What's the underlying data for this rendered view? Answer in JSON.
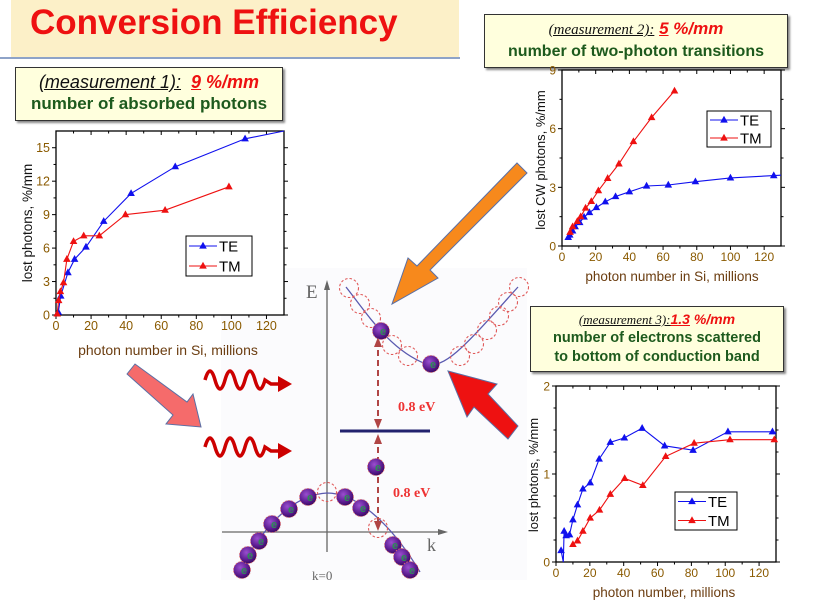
{
  "header": {
    "title": "Conversion Efficiency"
  },
  "callouts": [
    {
      "label": "(measurement 1):",
      "value": "9",
      "unit": "%/mm",
      "description": [
        "number of absorbed photons"
      ]
    },
    {
      "label": "(measurement 2):",
      "value": "5",
      "unit": "%/mm",
      "description": [
        "number of two-photon transitions"
      ]
    },
    {
      "label": "(measurement 3):",
      "value": "1.3",
      "unit": "%/mm",
      "description": [
        "number of electrons scattered",
        "to bottom of conduction band"
      ]
    }
  ],
  "band_diagram": {
    "energy_axis_label": "E",
    "momentum_axis_label": "k",
    "k0_label": "k=0",
    "gap_upper_label": "0.8 eV",
    "gap_lower_label": "0.8 eV",
    "electron_glyph": "e"
  },
  "colors": {
    "te": "#1010ee",
    "tm": "#ee1111",
    "title": "#ee1111",
    "callout_bg": "#ffffdd",
    "arrow_orange": "#f7891c",
    "arrow_red": "#ee1111",
    "arrow_pink": "#f56b6b"
  },
  "chart_data": [
    {
      "type": "line",
      "id": "chart-absorbed",
      "xlabel": "photon number in Si, millions",
      "ylabel": "lost photons,  %/mm",
      "xlim": [
        0,
        130
      ],
      "ylim": [
        0,
        16.5
      ],
      "xticks": [
        0,
        20,
        40,
        60,
        80,
        100,
        120
      ],
      "yticks": [
        0,
        3,
        6,
        9,
        12,
        15
      ],
      "legend": "center-right",
      "series": [
        {
          "name": "TE",
          "x": [
            1.3,
            2.7,
            6.8,
            10.6,
            17.1,
            27.2,
            42.8,
            68,
            107.8,
            130
          ],
          "y": [
            0.25,
            1.7,
            3.8,
            5.0,
            6.1,
            8.4,
            10.9,
            13.3,
            15.8,
            16.5
          ],
          "marker_count": 9
        },
        {
          "name": "TM",
          "x": [
            0.7,
            1.5,
            2.5,
            4.3,
            6.2,
            10,
            15.8,
            24.7,
            39.6,
            62.2,
            98.6
          ],
          "y": [
            0.1,
            1.3,
            2.1,
            2.9,
            5.0,
            6.6,
            7.1,
            7.1,
            9.0,
            9.4,
            11.5
          ]
        }
      ]
    },
    {
      "type": "line",
      "id": "chart-two-photon",
      "xlabel": "photon number in Si, millions",
      "ylabel": "lost CW photons,  %/mm",
      "xlim": [
        0,
        130
      ],
      "ylim": [
        0,
        9
      ],
      "xticks": [
        0,
        20,
        40,
        60,
        80,
        100,
        120
      ],
      "yticks": [
        0,
        3,
        6,
        9
      ],
      "legend": "top-right",
      "series": [
        {
          "name": "TE",
          "x": [
            3.7,
            4.6,
            6.3,
            7.8,
            10.5,
            13.1,
            16.3,
            20.4,
            25.7,
            31.8,
            40,
            50.2,
            63.1,
            79.2,
            100,
            125.7,
            130
          ],
          "y": [
            0.44,
            0.56,
            0.77,
            0.99,
            1.2,
            1.48,
            1.71,
            1.97,
            2.26,
            2.53,
            2.77,
            3.07,
            3.12,
            3.29,
            3.48,
            3.6,
            3.62
          ],
          "marker_count": 16
        },
        {
          "name": "TM",
          "x": [
            4.8,
            6.3,
            9.1,
            11.1,
            14,
            17.4,
            21.6,
            27.1,
            33.8,
            42.4,
            53.2,
            66.8
          ],
          "y": [
            0.7,
            0.99,
            1.26,
            1.5,
            1.94,
            2.28,
            2.83,
            3.46,
            4.2,
            5.34,
            6.57,
            7.93
          ]
        }
      ]
    },
    {
      "type": "line",
      "id": "chart-scattered",
      "xlabel": "photon number, millions",
      "ylabel": "lost photons,  %/mm",
      "xlim": [
        0,
        130
      ],
      "ylim": [
        0,
        2
      ],
      "xticks": [
        0,
        20,
        40,
        60,
        80,
        100,
        120
      ],
      "yticks": [
        0,
        1,
        2
      ],
      "legend": "center-right",
      "series": [
        {
          "name": "TE",
          "x": [
            3,
            4.3,
            4.8,
            6,
            8,
            10,
            12.7,
            15.9,
            20.2,
            25.5,
            32.1,
            40.4,
            50.9,
            64.2,
            81,
            101.6,
            127.9,
            130
          ],
          "y": [
            0.13,
            0,
            0.35,
            0.3,
            0.31,
            0.48,
            0.65,
            0.83,
            0.9,
            1.17,
            1.36,
            1.41,
            1.52,
            1.32,
            1.27,
            1.48,
            1.48,
            1.47
          ],
          "marker_skip": [
            1,
            17
          ]
        },
        {
          "name": "TM",
          "x": [
            10,
            12.7,
            15.9,
            20.2,
            25.7,
            32.1,
            40.6,
            51.3,
            64.8,
            81.6,
            102.8,
            129
          ],
          "y": [
            0.2,
            0.24,
            0.35,
            0.5,
            0.59,
            0.77,
            0.95,
            0.87,
            1.2,
            1.35,
            1.39,
            1.39
          ]
        }
      ]
    }
  ]
}
